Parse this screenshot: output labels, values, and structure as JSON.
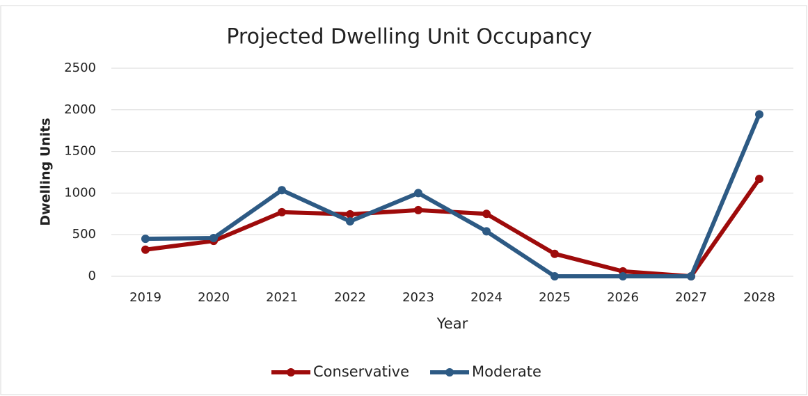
{
  "chart_data": {
    "type": "line",
    "title": "Projected Dwelling Unit Occupancy",
    "x_label": "Year",
    "y_label": "Dwelling Units",
    "categories": [
      "2019",
      "2020",
      "2021",
      "2022",
      "2023",
      "2024",
      "2025",
      "2026",
      "2027",
      "2028"
    ],
    "series": [
      {
        "name": "Conservative",
        "color": "#9e0b0b",
        "values": [
          320,
          425,
          770,
          745,
          795,
          750,
          270,
          60,
          0,
          1170
        ]
      },
      {
        "name": "Moderate",
        "color": "#2d5a84",
        "values": [
          450,
          460,
          1035,
          660,
          1000,
          540,
          0,
          0,
          0,
          1945
        ]
      }
    ],
    "ylim": [
      0,
      2500
    ],
    "yticks": [
      0,
      500,
      1000,
      1500,
      2000,
      2500
    ],
    "grid": true,
    "legend": "bottom"
  }
}
